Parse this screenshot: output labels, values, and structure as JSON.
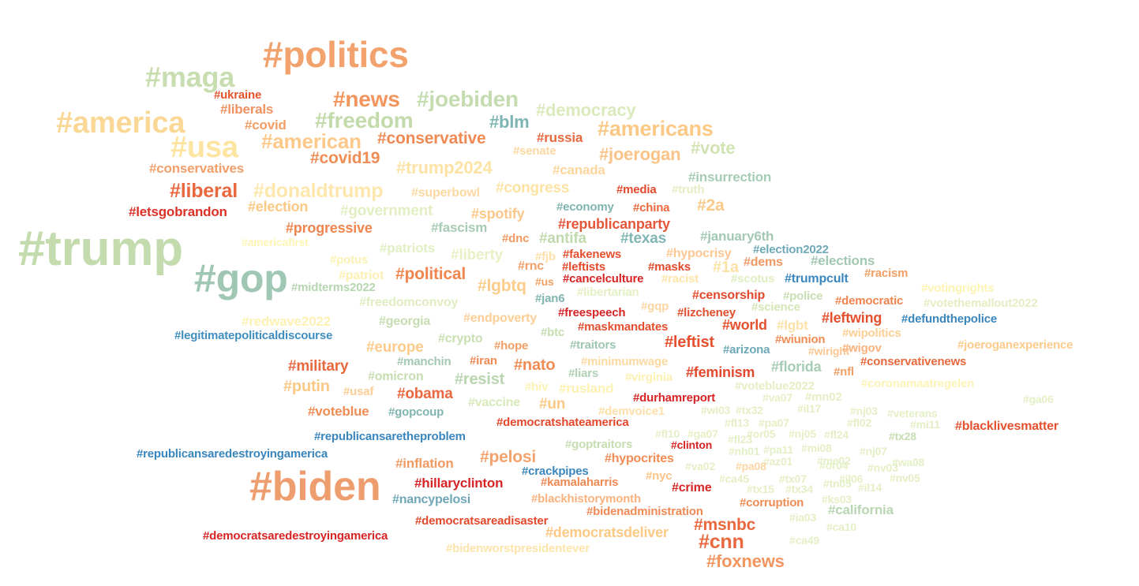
{
  "words": [
    {
      "text": "#politics",
      "color": "#f2a26d"
    },
    {
      "text": "#maga",
      "color": "#c8ddb0"
    },
    {
      "text": "#america",
      "color": "#fad795"
    },
    {
      "text": "#usa",
      "color": "#fde4a0"
    },
    {
      "text": "#trump",
      "color": "#c3dbad"
    },
    {
      "text": "#gop",
      "color": "#9fc7b4"
    },
    {
      "text": "#biden",
      "color": "#ee9d6f"
    },
    {
      "text": "#news",
      "color": "#f2955e"
    },
    {
      "text": "#joebiden",
      "color": "#c4dcb0"
    },
    {
      "text": "#democracy",
      "color": "#dbeabc"
    },
    {
      "text": "#freedom",
      "color": "#c3dbab"
    },
    {
      "text": "#blm",
      "color": "#7db5b3"
    },
    {
      "text": "#americans",
      "color": "#fbc985"
    },
    {
      "text": "#ukraine",
      "color": "#e4552e"
    },
    {
      "text": "#liberals",
      "color": "#f09261"
    },
    {
      "text": "#covid",
      "color": "#f29f66"
    },
    {
      "text": "#american",
      "color": "#fcc98a"
    },
    {
      "text": "#conservative",
      "color": "#f08a55"
    },
    {
      "text": "#russia",
      "color": "#e6693f"
    },
    {
      "text": "#joerogan",
      "color": "#fbc388"
    },
    {
      "text": "#vote",
      "color": "#d3e4b4"
    },
    {
      "text": "#senate",
      "color": "#fcd7a0"
    },
    {
      "text": "#covid19",
      "color": "#f08c55"
    },
    {
      "text": "#trump2024",
      "color": "#fde2a5"
    },
    {
      "text": "#canada",
      "color": "#fcd69d"
    },
    {
      "text": "#conservatives",
      "color": "#f29f6c"
    },
    {
      "text": "#insurrection",
      "color": "#a7ccb6"
    },
    {
      "text": "#liberal",
      "color": "#e9683f"
    },
    {
      "text": "#donaldtrump",
      "color": "#fde7ad"
    },
    {
      "text": "#superbowl",
      "color": "#fcd9a0"
    },
    {
      "text": "#congress",
      "color": "#fde3a3"
    },
    {
      "text": "#media",
      "color": "#e4492d"
    },
    {
      "text": "#truth",
      "color": "#e5efc5"
    },
    {
      "text": "#letsgobrandon",
      "color": "#dc3128"
    },
    {
      "text": "#election",
      "color": "#fcc985"
    },
    {
      "text": "#government",
      "color": "#e3eec3"
    },
    {
      "text": "#spotify",
      "color": "#fcc88a"
    },
    {
      "text": "#economy",
      "color": "#80b5b0"
    },
    {
      "text": "#china",
      "color": "#ea683c"
    },
    {
      "text": "#2a",
      "color": "#fbc987"
    },
    {
      "text": "#republicanparty",
      "color": "#e5573a"
    },
    {
      "text": "#progressive",
      "color": "#f0854f"
    },
    {
      "text": "#fascism",
      "color": "#a8cbb3"
    },
    {
      "text": "#dnc",
      "color": "#f09a63"
    },
    {
      "text": "#antifa",
      "color": "#c0d9ae"
    },
    {
      "text": "#texas",
      "color": "#80b6b4"
    },
    {
      "text": "#january6th",
      "color": "#a4c8b4"
    },
    {
      "text": "#americafirst",
      "color": "#fef5b4"
    },
    {
      "text": "#patriots",
      "color": "#e3eec5"
    },
    {
      "text": "#election2022",
      "color": "#6ea9b8"
    },
    {
      "text": "#potus",
      "color": "#fbf1b4"
    },
    {
      "text": "#liberty",
      "color": "#e8f0c5"
    },
    {
      "text": "#fjb",
      "color": "#fde0a9"
    },
    {
      "text": "#fakenews",
      "color": "#e5502f"
    },
    {
      "text": "#hypocrisy",
      "color": "#fcc792"
    },
    {
      "text": "#elections",
      "color": "#a3c8b2"
    },
    {
      "text": "#rnc",
      "color": "#f1a069"
    },
    {
      "text": "#leftists",
      "color": "#e24a2b"
    },
    {
      "text": "#masks",
      "color": "#e24a2b"
    },
    {
      "text": "#1a",
      "color": "#fde2a8"
    },
    {
      "text": "#dems",
      "color": "#f09864"
    },
    {
      "text": "#patriot",
      "color": "#fbf0b4"
    },
    {
      "text": "#political",
      "color": "#f0854e"
    },
    {
      "text": "#lgbtq",
      "color": "#fbcd8b"
    },
    {
      "text": "#us",
      "color": "#f29f66"
    },
    {
      "text": "#cancelculture",
      "color": "#d72526"
    },
    {
      "text": "#racist",
      "color": "#fde4aa"
    },
    {
      "text": "#scotus",
      "color": "#dfedc1"
    },
    {
      "text": "#trumpcult",
      "color": "#3a86bd"
    },
    {
      "text": "#racism",
      "color": "#f29f66"
    },
    {
      "text": "#midterms2022",
      "color": "#b6d6b1"
    },
    {
      "text": "#libertarian",
      "color": "#e4efc4"
    },
    {
      "text": "#votingrights",
      "color": "#fdf3b3"
    },
    {
      "text": "#jan6",
      "color": "#80b5b0"
    },
    {
      "text": "#censorship",
      "color": "#e3492c"
    },
    {
      "text": "#police",
      "color": "#c6deb1"
    },
    {
      "text": "#democratic",
      "color": "#f0844f"
    },
    {
      "text": "#votethemallout2022",
      "color": "#e3eec3"
    },
    {
      "text": "#freedomconvoy",
      "color": "#e0edc1"
    },
    {
      "text": "#gqp",
      "color": "#fdd5a3"
    },
    {
      "text": "#lizcheney",
      "color": "#e24f2d"
    },
    {
      "text": "#science",
      "color": "#d3e6b6"
    },
    {
      "text": "#redwave2022",
      "color": "#fdf1b3"
    },
    {
      "text": "#georgia",
      "color": "#c6ddb1"
    },
    {
      "text": "#endpoverty",
      "color": "#fcce95"
    },
    {
      "text": "#freespeech",
      "color": "#d72526"
    },
    {
      "text": "#world",
      "color": "#e6512e"
    },
    {
      "text": "#lgbt",
      "color": "#fde2a8"
    },
    {
      "text": "#leftwing",
      "color": "#e5502f"
    },
    {
      "text": "#defundthepolice",
      "color": "#3a86bd"
    },
    {
      "text": "#maskmandates",
      "color": "#e54f30"
    },
    {
      "text": "#legitimatepoliticaldiscourse",
      "color": "#3f8ebe"
    },
    {
      "text": "#btc",
      "color": "#c5ddb1"
    },
    {
      "text": "#crypto",
      "color": "#c8dfb1"
    },
    {
      "text": "#leftist",
      "color": "#e5512f"
    },
    {
      "text": "#wiunion",
      "color": "#f08c55"
    },
    {
      "text": "#wipolitics",
      "color": "#fccf94"
    },
    {
      "text": "#europe",
      "color": "#fccb8b"
    },
    {
      "text": "#hope",
      "color": "#f29f66"
    },
    {
      "text": "#traitors",
      "color": "#9ec6b2"
    },
    {
      "text": "#arizona",
      "color": "#6ea9b8"
    },
    {
      "text": "#wiright",
      "color": "#fcc792"
    },
    {
      "text": "#wigov",
      "color": "#fbb27e"
    },
    {
      "text": "#joeroganexperience",
      "color": "#fccb8b"
    },
    {
      "text": "#manchin",
      "color": "#a3c8b2"
    },
    {
      "text": "#iran",
      "color": "#f08a55"
    },
    {
      "text": "#minimumwage",
      "color": "#fbd9a0"
    },
    {
      "text": "#florida",
      "color": "#a7ccb6"
    },
    {
      "text": "#nfl",
      "color": "#f29f66"
    },
    {
      "text": "#conservativenews",
      "color": "#e8693e"
    },
    {
      "text": "#military",
      "color": "#e9683f"
    },
    {
      "text": "#nato",
      "color": "#f08c55"
    },
    {
      "text": "#liars",
      "color": "#b0d1b3"
    },
    {
      "text": "#feminism",
      "color": "#e3492c"
    },
    {
      "text": "#omicron",
      "color": "#c6ddb1"
    },
    {
      "text": "#virginia",
      "color": "#fdf0b2"
    },
    {
      "text": "#putin",
      "color": "#fbc987"
    },
    {
      "text": "#usaf",
      "color": "#fccd95"
    },
    {
      "text": "#resist",
      "color": "#b8d6b1"
    },
    {
      "text": "#hiv",
      "color": "#fef1b3"
    },
    {
      "text": "#rusland",
      "color": "#fdf1b3"
    },
    {
      "text": "#voteblue2022",
      "color": "#e5efc5"
    },
    {
      "text": "#coronamaatregelen",
      "color": "#fdf3b7"
    },
    {
      "text": "#obama",
      "color": "#e9683f"
    },
    {
      "text": "#durhamreport",
      "color": "#d72526"
    },
    {
      "text": "#va07",
      "color": "#e4efc5"
    },
    {
      "text": "#mn02",
      "color": "#e4efc5"
    },
    {
      "text": "#ga06",
      "color": "#e4efc5"
    },
    {
      "text": "#voteblue",
      "color": "#f08c55"
    },
    {
      "text": "#gopcoup",
      "color": "#80b5b0"
    },
    {
      "text": "#vaccine",
      "color": "#d8e9bb"
    },
    {
      "text": "#un",
      "color": "#fcc985"
    },
    {
      "text": "#demvoice1",
      "color": "#fde0a9"
    },
    {
      "text": "#wi03",
      "color": "#e4efc5"
    },
    {
      "text": "#tx32",
      "color": "#e4efc5"
    },
    {
      "text": "#il17",
      "color": "#e4efc5"
    },
    {
      "text": "#nj03",
      "color": "#e4efc5"
    },
    {
      "text": "#veterans",
      "color": "#e4efc5"
    },
    {
      "text": "#democratshateamerica",
      "color": "#e3492c"
    },
    {
      "text": "#fl13",
      "color": "#e4efc5"
    },
    {
      "text": "#pa07",
      "color": "#e4efc5"
    },
    {
      "text": "#fl02",
      "color": "#e4efc5"
    },
    {
      "text": "#mi11",
      "color": "#e4efc5"
    },
    {
      "text": "#blacklivesmatter",
      "color": "#e5502f"
    },
    {
      "text": "#republicansaretheproblem",
      "color": "#3a86bd"
    },
    {
      "text": "#fl10",
      "color": "#e4efc5"
    },
    {
      "text": "#ga07",
      "color": "#e4efc5"
    },
    {
      "text": "#or05",
      "color": "#e4efc5"
    },
    {
      "text": "#nj05",
      "color": "#e4efc5"
    },
    {
      "text": "#fl24",
      "color": "#e4efc5"
    },
    {
      "text": "#tx28",
      "color": "#c6ddb1"
    },
    {
      "text": "#goptraitors",
      "color": "#c6ddb1"
    },
    {
      "text": "#clinton",
      "color": "#d72526"
    },
    {
      "text": "#fl23",
      "color": "#e4efc5"
    },
    {
      "text": "#republicansaredestroyingamerica",
      "color": "#3a86bd"
    },
    {
      "text": "#nh01",
      "color": "#e4efc5"
    },
    {
      "text": "#pa11",
      "color": "#e4efc5"
    },
    {
      "text": "#mi08",
      "color": "#e4efc5"
    },
    {
      "text": "#nj07",
      "color": "#e4efc5"
    },
    {
      "text": "#pelosi",
      "color": "#f2a26d"
    },
    {
      "text": "#inflation",
      "color": "#f09a63"
    },
    {
      "text": "#hypocrites",
      "color": "#f08c55"
    },
    {
      "text": "#az01",
      "color": "#e4efc5"
    },
    {
      "text": "#me02",
      "color": "#e4efc5"
    },
    {
      "text": "#wa08",
      "color": "#e4efc5"
    },
    {
      "text": "#crackpipes",
      "color": "#3a86bd"
    },
    {
      "text": "#va02",
      "color": "#e4efc5"
    },
    {
      "text": "#pa08",
      "color": "#fdd5a3"
    },
    {
      "text": "#or04",
      "color": "#e4efc5"
    },
    {
      "text": "#nv03",
      "color": "#e4efc5"
    },
    {
      "text": "#hillaryclinton",
      "color": "#d72526"
    },
    {
      "text": "#kamalaharris",
      "color": "#f08a55"
    },
    {
      "text": "#nyc",
      "color": "#fbc387"
    },
    {
      "text": "#ca45",
      "color": "#e4efc5"
    },
    {
      "text": "#tx07",
      "color": "#e4efc5"
    },
    {
      "text": "#il06",
      "color": "#e4efc5"
    },
    {
      "text": "#nv05",
      "color": "#e4efc5"
    },
    {
      "text": "#crime",
      "color": "#d72526"
    },
    {
      "text": "#tx15",
      "color": "#e4efc5"
    },
    {
      "text": "#tx34",
      "color": "#e4efc5"
    },
    {
      "text": "#tn05",
      "color": "#e4efc5"
    },
    {
      "text": "#il14",
      "color": "#e4efc5"
    },
    {
      "text": "#nancypelosi",
      "color": "#6fa7b6"
    },
    {
      "text": "#blackhistorymonth",
      "color": "#fbb27e"
    },
    {
      "text": "#corruption",
      "color": "#f08c55"
    },
    {
      "text": "#ks03",
      "color": "#e4efc5"
    },
    {
      "text": "#bidenadministration",
      "color": "#f08a55"
    },
    {
      "text": "#california",
      "color": "#b8d6b1"
    },
    {
      "text": "#democratsareadisaster",
      "color": "#e3492c"
    },
    {
      "text": "#ia03",
      "color": "#e4efc5"
    },
    {
      "text": "#msnbc",
      "color": "#e9683f"
    },
    {
      "text": "#ca10",
      "color": "#e4efc5"
    },
    {
      "text": "#democratsaredestroyingamerica",
      "color": "#d72526"
    },
    {
      "text": "#democratsdeliver",
      "color": "#fcc985"
    },
    {
      "text": "#cnn",
      "color": "#e9683f"
    },
    {
      "text": "#ca49",
      "color": "#e4efc5"
    },
    {
      "text": "#bidenworstpresidentever",
      "color": "#fde4aa"
    },
    {
      "text": "#foxnews",
      "color": "#f2955e"
    }
  ]
}
